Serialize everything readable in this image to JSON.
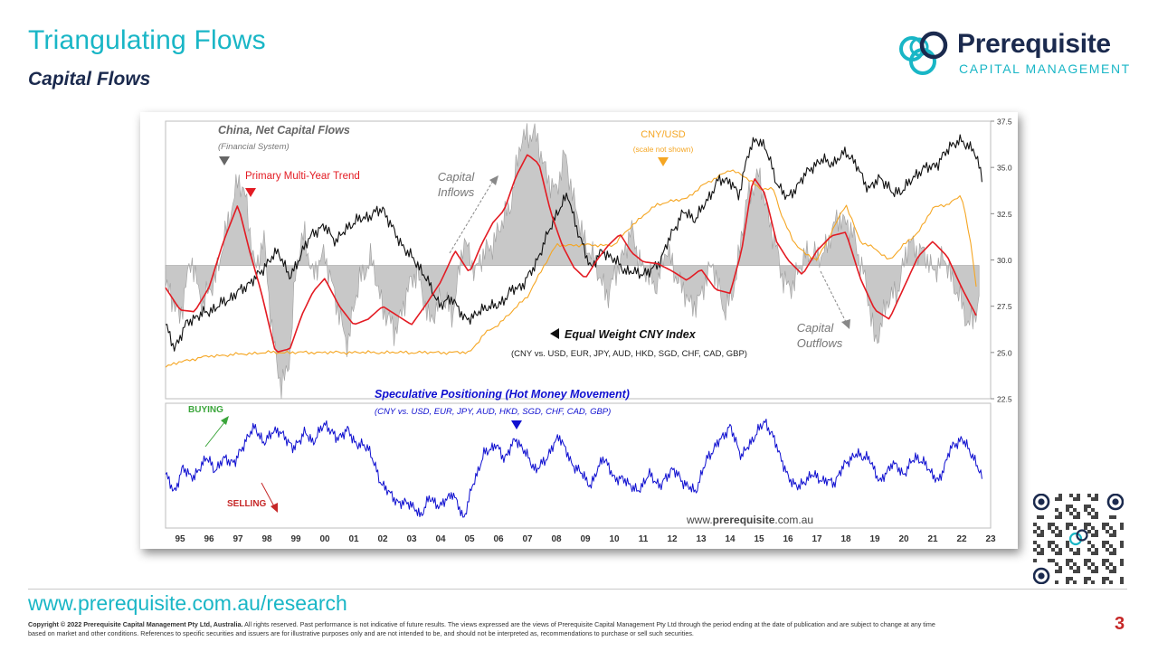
{
  "slide": {
    "title": "Triangulating Flows",
    "subtitle": "Capital Flows",
    "page_number": "3",
    "footer_url": "www.prerequisite.com.au/research",
    "copyright_bold": "Copyright © 2022 Prerequisite Capital Management Pty Ltd, Australia.",
    "copyright_text": "All rights reserved. Past performance is not indicative of future results. The views expressed are the views of Prerequisite Capital Management Pty Ltd through the period ending at the date of publication and are subject to change at any time based on market and other conditions. References to specific securities and issuers are for illustrative purposes only and are not intended to be, and should not be interpreted as, recommendations to purchase or sell such securities."
  },
  "logo": {
    "name": "Prerequisite",
    "tagline": "CAPITAL MANAGEMENT"
  },
  "colors": {
    "teal": "#19b6c6",
    "navy": "#1b2a4e",
    "red": "#e31b23",
    "orange": "#f5a623",
    "blue": "#1010d0",
    "grey_fill": "#c8c8c8",
    "green": "#3aa53a"
  },
  "chart_data": [
    {
      "type": "line",
      "panel": "upper",
      "xlim": [
        1994.5,
        2023.0
      ],
      "ylim": [
        22.5,
        37.5
      ],
      "yticks": [
        "37.5",
        "35.0",
        "32.5",
        "30.0",
        "27.5",
        "25.0",
        "22.5"
      ],
      "xtick_labels": [
        "95",
        "96",
        "97",
        "98",
        "99",
        "00",
        "01",
        "02",
        "03",
        "04",
        "05",
        "06",
        "07",
        "08",
        "09",
        "10",
        "11",
        "12",
        "13",
        "14",
        "15",
        "16",
        "17",
        "18",
        "19",
        "20",
        "21",
        "22",
        "23"
      ],
      "annotations": {
        "net_flows_title": "China, Net Capital Flows",
        "net_flows_sub": "(Financial System)",
        "trend_label": "Primary Multi-Year Trend",
        "inflows_l1": "Capital",
        "inflows_l2": "Inflows",
        "cnyusd_label": "CNY/USD",
        "cnyusd_sub": "(scale not shown)",
        "index_label": "Equal Weight CNY Index",
        "index_sub": "(CNY vs. USD, EUR, JPY, AUD, HKD, SGD, CHF, CAD, GBP)",
        "outflows_l1": "Capital",
        "outflows_l2": "Outflows"
      },
      "series": [
        {
          "name": "China, Net Capital Flows",
          "style": "grey-area",
          "baseline": 29.7,
          "x": [
            1994.5,
            1995.0,
            1995.4,
            1995.8,
            1996.2,
            1996.6,
            1997.0,
            1997.3,
            1997.6,
            1997.9,
            1998.2,
            1998.5,
            1998.8,
            1999.0,
            1999.3,
            1999.6,
            2000.0,
            2000.4,
            2000.8,
            2001.2,
            2001.6,
            2002.0,
            2002.4,
            2002.8,
            2003.2,
            2003.6,
            2004.0,
            2004.4,
            2004.8,
            2005.2,
            2005.6,
            2006.0,
            2006.4,
            2006.8,
            2007.2,
            2007.6,
            2008.0,
            2008.3,
            2008.6,
            2009.0,
            2009.4,
            2009.8,
            2010.2,
            2010.6,
            2011.0,
            2011.4,
            2011.8,
            2012.2,
            2012.6,
            2013.0,
            2013.4,
            2013.8,
            2014.2,
            2014.6,
            2015.0,
            2015.4,
            2015.8,
            2016.2,
            2016.6,
            2017.0,
            2017.4,
            2017.8,
            2018.2,
            2018.6,
            2019.0,
            2019.4,
            2019.8,
            2020.2,
            2020.6,
            2021.0,
            2021.4,
            2021.8,
            2022.2,
            2022.6
          ],
          "values": [
            28.5,
            27.0,
            30.0,
            27.5,
            29.0,
            31.5,
            34.5,
            33.0,
            29.5,
            31.0,
            26.0,
            22.8,
            25.0,
            29.5,
            31.5,
            29.0,
            30.5,
            27.5,
            25.5,
            29.0,
            30.0,
            27.5,
            26.0,
            28.0,
            29.5,
            26.5,
            28.0,
            27.0,
            31.0,
            29.5,
            30.5,
            31.5,
            33.0,
            36.5,
            37.0,
            35.0,
            33.5,
            36.0,
            33.0,
            31.0,
            29.5,
            28.0,
            30.0,
            31.5,
            29.5,
            28.5,
            30.5,
            29.0,
            27.5,
            28.0,
            30.0,
            27.0,
            29.0,
            33.5,
            34.5,
            32.0,
            29.0,
            28.5,
            30.5,
            30.0,
            31.0,
            32.5,
            31.5,
            29.5,
            25.5,
            27.5,
            28.5,
            31.0,
            30.5,
            29.5,
            30.0,
            28.5,
            26.5,
            27.5
          ]
        },
        {
          "name": "Primary Multi-Year Trend",
          "style": "red",
          "x": [
            1994.5,
            1995.0,
            1995.5,
            1996.0,
            1996.5,
            1997.0,
            1997.4,
            1997.8,
            1998.3,
            1998.8,
            1999.2,
            1999.6,
            2000.0,
            2000.5,
            2001.0,
            2001.5,
            2002.0,
            2002.5,
            2003.0,
            2003.5,
            2004.0,
            2004.5,
            2005.0,
            2005.4,
            2005.8,
            2006.2,
            2006.6,
            2007.0,
            2007.4,
            2007.8,
            2008.2,
            2008.6,
            2009.0,
            2009.4,
            2009.8,
            2010.2,
            2010.6,
            2011.0,
            2011.5,
            2012.0,
            2012.5,
            2013.0,
            2013.5,
            2014.0,
            2014.4,
            2014.8,
            2015.2,
            2015.6,
            2016.0,
            2016.5,
            2017.0,
            2017.5,
            2018.0,
            2018.5,
            2019.0,
            2019.5,
            2020.0,
            2020.5,
            2021.0,
            2021.5,
            2022.0,
            2022.5
          ],
          "values": [
            28.5,
            27.3,
            27.2,
            28.5,
            31.0,
            33.0,
            30.5,
            28.3,
            25.0,
            25.2,
            27.0,
            28.3,
            29.0,
            27.5,
            26.5,
            26.8,
            27.5,
            27.0,
            26.5,
            27.6,
            28.8,
            30.5,
            29.3,
            30.8,
            32.0,
            32.7,
            34.5,
            35.7,
            35.2,
            32.6,
            30.8,
            29.6,
            29.0,
            30.0,
            30.8,
            31.4,
            30.4,
            29.9,
            29.8,
            29.4,
            28.9,
            29.5,
            28.4,
            28.2,
            30.5,
            34.5,
            33.6,
            31.0,
            30.0,
            29.2,
            30.5,
            31.3,
            31.5,
            29.0,
            27.3,
            26.8,
            28.5,
            30.2,
            31.0,
            30.2,
            28.5,
            27.0
          ]
        },
        {
          "name": "CNY/USD",
          "style": "orange",
          "x": [
            1994.5,
            1995.0,
            1996.0,
            1997.0,
            1998.0,
            1999.0,
            2000.0,
            2001.0,
            2002.0,
            2003.0,
            2004.0,
            2005.0,
            2005.5,
            2006.0,
            2006.5,
            2007.0,
            2007.5,
            2008.0,
            2008.5,
            2009.0,
            2010.0,
            2010.5,
            2011.0,
            2011.5,
            2012.0,
            2012.5,
            2013.0,
            2013.5,
            2014.0,
            2014.5,
            2015.0,
            2015.5,
            2015.8,
            2016.2,
            2016.6,
            2017.0,
            2017.5,
            2018.0,
            2018.5,
            2019.0,
            2019.5,
            2020.0,
            2020.5,
            2021.0,
            2021.5,
            2022.0,
            2022.3,
            2022.5
          ],
          "values": [
            24.2,
            24.5,
            24.8,
            24.9,
            25.0,
            25.0,
            25.0,
            25.0,
            25.0,
            25.0,
            25.0,
            25.0,
            26.0,
            26.5,
            27.3,
            28.0,
            29.5,
            30.8,
            30.8,
            30.8,
            30.8,
            31.7,
            32.4,
            33.0,
            33.2,
            33.3,
            34.0,
            34.4,
            34.9,
            34.5,
            33.9,
            33.8,
            32.3,
            31.0,
            30.3,
            30.0,
            31.5,
            33.0,
            31.0,
            30.6,
            30.0,
            30.8,
            31.5,
            32.8,
            33.0,
            33.5,
            31.0,
            28.6
          ]
        },
        {
          "name": "Equal Weight CNY Index",
          "style": "black",
          "x": [
            1994.5,
            1994.8,
            1995.2,
            1995.6,
            1996.0,
            1996.4,
            1996.8,
            1997.2,
            1997.6,
            1998.0,
            1998.4,
            1998.8,
            1999.2,
            1999.6,
            2000.0,
            2000.4,
            2000.8,
            2001.2,
            2001.6,
            2002.0,
            2002.4,
            2002.8,
            2003.2,
            2003.6,
            2004.0,
            2004.4,
            2004.8,
            2005.2,
            2005.6,
            2006.0,
            2006.4,
            2006.8,
            2007.2,
            2007.6,
            2008.0,
            2008.4,
            2008.8,
            2009.2,
            2009.6,
            2010.0,
            2010.4,
            2010.8,
            2011.2,
            2011.6,
            2012.0,
            2012.4,
            2012.8,
            2013.2,
            2013.6,
            2014.0,
            2014.3,
            2014.6,
            2014.9,
            2015.2,
            2015.6,
            2016.0,
            2016.4,
            2016.8,
            2017.2,
            2017.6,
            2018.0,
            2018.4,
            2018.8,
            2019.2,
            2019.6,
            2020.0,
            2020.4,
            2020.8,
            2021.2,
            2021.6,
            2022.0,
            2022.4,
            2022.7
          ],
          "values": [
            26.5,
            25.2,
            26.5,
            27.0,
            27.2,
            27.6,
            28.0,
            28.5,
            29.0,
            29.8,
            30.5,
            29.0,
            30.4,
            31.5,
            31.8,
            31.0,
            31.8,
            32.2,
            32.4,
            32.8,
            31.5,
            30.5,
            29.8,
            28.7,
            27.5,
            28.0,
            26.8,
            27.0,
            27.5,
            27.5,
            28.3,
            28.6,
            29.5,
            31.0,
            32.5,
            33.5,
            31.2,
            29.6,
            30.5,
            30.0,
            29.4,
            29.3,
            29.3,
            30.0,
            31.5,
            32.6,
            32.2,
            33.2,
            34.3,
            34.3,
            33.4,
            35.7,
            36.5,
            36.2,
            34.2,
            33.3,
            34.2,
            35.0,
            35.4,
            35.2,
            35.9,
            35.0,
            33.8,
            34.5,
            33.6,
            33.8,
            34.6,
            35.0,
            35.2,
            36.2,
            36.4,
            36.0,
            34.5
          ]
        }
      ]
    },
    {
      "type": "line",
      "panel": "lower",
      "title": "Speculative Positioning (Hot Money Movement)",
      "subtitle": "(CNY vs. USD, EUR, JPY, AUD, HKD, SGD, CHF, CAD, GBP)",
      "buying_label": "BUYING",
      "selling_label": "SELLING",
      "watermark_pre": "www.",
      "watermark_bold": "prerequisite",
      "watermark_post": ".com.au",
      "xlim": [
        1994.5,
        2023.0
      ],
      "ylim": [
        0,
        100
      ],
      "series": [
        {
          "name": "Speculative Positioning (Hot Money Movement)",
          "style": "blue",
          "x": [
            1994.5,
            1994.8,
            1995.1,
            1995.5,
            1995.9,
            1996.2,
            1996.5,
            1996.9,
            1997.3,
            1997.6,
            1997.9,
            1998.2,
            1998.6,
            1998.9,
            1999.3,
            1999.6,
            2000.0,
            2000.4,
            2000.8,
            2001.1,
            2001.5,
            2001.9,
            2002.2,
            2002.6,
            2002.9,
            2003.3,
            2003.6,
            2004.0,
            2004.4,
            2004.8,
            2005.1,
            2005.5,
            2005.9,
            2006.2,
            2006.6,
            2006.9,
            2007.3,
            2007.7,
            2008.1,
            2008.5,
            2008.9,
            2009.2,
            2009.6,
            2010.0,
            2010.4,
            2010.8,
            2011.2,
            2011.6,
            2012.0,
            2012.4,
            2012.8,
            2013.2,
            2013.6,
            2014.0,
            2014.4,
            2014.8,
            2015.2,
            2015.6,
            2016.0,
            2016.4,
            2016.8,
            2017.2,
            2017.6,
            2018.0,
            2018.4,
            2018.8,
            2019.2,
            2019.6,
            2020.0,
            2020.4,
            2020.8,
            2021.2,
            2021.6,
            2022.0,
            2022.4,
            2022.7
          ],
          "values": [
            45,
            30,
            50,
            42,
            60,
            48,
            58,
            55,
            75,
            85,
            70,
            82,
            78,
            66,
            80,
            72,
            88,
            75,
            82,
            70,
            68,
            40,
            30,
            20,
            22,
            10,
            25,
            18,
            30,
            8,
            35,
            62,
            70,
            58,
            75,
            64,
            48,
            60,
            78,
            55,
            45,
            35,
            60,
            42,
            40,
            30,
            45,
            35,
            50,
            38,
            30,
            58,
            72,
            85,
            60,
            75,
            90,
            70,
            42,
            34,
            45,
            40,
            38,
            55,
            62,
            58,
            38,
            55,
            45,
            60,
            52,
            38,
            66,
            75,
            60,
            42
          ]
        }
      ]
    }
  ]
}
